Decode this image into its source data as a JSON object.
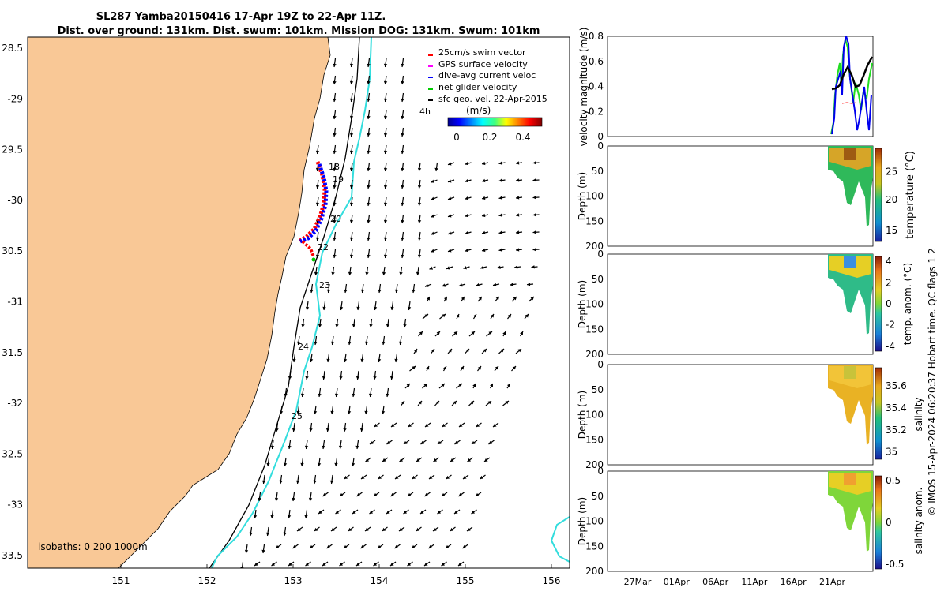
{
  "title": {
    "line1": "SL287 Yamba20150416 17-Apr 19Z to 22-Apr 11Z.",
    "line2": "Dist. over ground: 131km. Dist. swum: 101km. Mission DOG: 131km. Swum: 101km"
  },
  "map": {
    "lat_ticks": [
      "28.5",
      "-29",
      "29.5",
      "-30",
      "30.5",
      "-31",
      "31.5",
      "-32",
      "32.5",
      "-33",
      "33.5"
    ],
    "lon_ticks": [
      "151",
      "152",
      "153",
      "154",
      "155",
      "156"
    ],
    "legend": [
      {
        "label": "25cm/s swim vector",
        "color": "#ff0000"
      },
      {
        "label": "GPS surface velocity",
        "color": "#ff00ff"
      },
      {
        "label": "dive-avg current veloc",
        "color": "#0000ff"
      },
      {
        "label": "net glider velocity",
        "color": "#00cc00"
      },
      {
        "label": "sfc geo. vel. 22-Apr-2015",
        "color": "#000000"
      }
    ],
    "colorbar": {
      "unit": "(m/s)",
      "ticks": [
        "0",
        "0.2",
        "0.4"
      ]
    },
    "timestep_label": "4h",
    "day_labels": [
      "18",
      "19",
      "20",
      "22",
      "23",
      "24",
      "25"
    ],
    "isobaths_label": "isobaths: 0   200  1000m",
    "colors": {
      "land": "#f9c896",
      "isobath_200": "#000000",
      "isobath_1000": "#33dddd"
    }
  },
  "panels": {
    "velocity": {
      "ylabel": "velocity magnitude (m/s)",
      "yticks": [
        "0.8",
        "0.6",
        "0.4",
        "0.2",
        "0"
      ]
    },
    "depth_ticks": [
      "0",
      "50",
      "100",
      "150",
      "200"
    ],
    "depth_label": "Depth (m)",
    "temperature": {
      "label": "temperature (°C)",
      "cticks": [
        "25",
        "20",
        "15"
      ]
    },
    "temp_anom": {
      "label": "temp. anom. (°C)",
      "cticks": [
        "4",
        "2",
        "0",
        "-2",
        "-4"
      ]
    },
    "salinity": {
      "label": "salinity",
      "cticks": [
        "35.6",
        "35.4",
        "35.2",
        "35"
      ]
    },
    "sal_anom": {
      "label": "salinity anom.",
      "cticks": [
        "0.5",
        "0",
        "-0.5"
      ]
    },
    "dates": [
      "27Mar",
      "01Apr",
      "06Apr",
      "11Apr",
      "16Apr",
      "21Apr"
    ]
  },
  "footer": {
    "credit": "© IMOS 15-Apr-2024 06:20:37 Hobart time. QC flags 1  2"
  }
}
